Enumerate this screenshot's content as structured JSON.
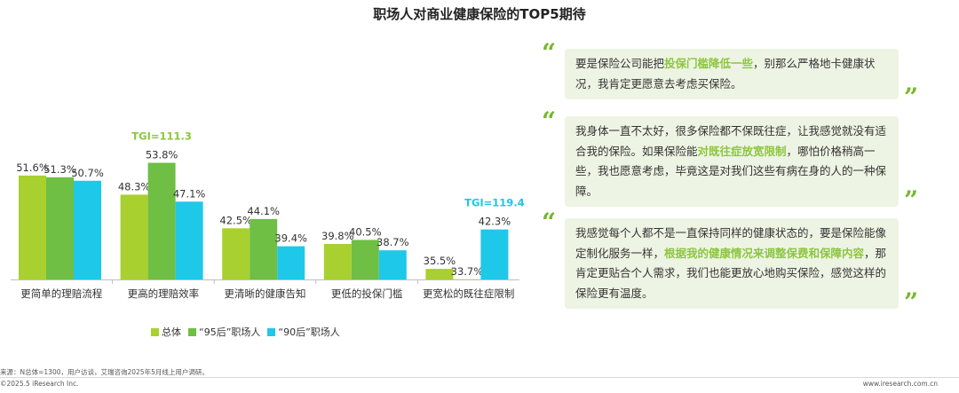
{
  "title": "职场人对商业健康保险的TOP5期待",
  "chart_data": {
    "type": "bar",
    "categories": [
      "更简单的理赔流程",
      "更高的理赔效率",
      "更清晰的健康告知",
      "更低的投保门槛",
      "更宽松的既往症限制"
    ],
    "series": [
      {
        "name": "总体",
        "color": "#a8d02e",
        "values": [
          51.6,
          48.3,
          42.5,
          39.8,
          35.5
        ],
        "labels": [
          "51.6%",
          "48.3%",
          "42.5%",
          "39.8%",
          "35.5%"
        ]
      },
      {
        "name": "“95后”职场人",
        "color": "#6ebf43",
        "values": [
          51.3,
          53.8,
          44.1,
          40.5,
          33.7
        ],
        "labels": [
          "51.3%",
          "53.8%",
          "44.1%",
          "40.5%",
          "33.7%"
        ]
      },
      {
        "name": "“90后”职场人",
        "color": "#1ec8e8",
        "values": [
          50.7,
          47.1,
          39.4,
          38.7,
          42.3
        ],
        "labels": [
          "50.7%",
          "47.1%",
          "39.4%",
          "38.7%",
          "42.3%"
        ]
      }
    ],
    "ylim": [
      0,
      60
    ],
    "annotations": [
      {
        "text": "TGI=111.3",
        "category": 1,
        "series": 1,
        "color": "#8cc63f"
      },
      {
        "text": "TGI=119.4",
        "category": 4,
        "series": 2,
        "color": "#1ec8e8"
      }
    ],
    "legend_position": "bottom"
  },
  "quotes": [
    {
      "pre": "要是保险公司能把",
      "highlight": "投保门槛降低一些",
      "post": "，别那么严格地卡健康状况，我肯定更愿意去考虑买保险。"
    },
    {
      "pre": "我身体一直不太好，很多保险都不保既往症，让我感觉就没有适合我的保险。如果保险能",
      "highlight": "对既往症放宽限制",
      "post": "，哪怕价格稍高一些，我也愿意考虑，毕竟这是对我们这些有病在身的人的一种保障。"
    },
    {
      "pre": "我感觉每个人都不是一直保持同样的健康状态的，要是保险能像定制化服务一样，",
      "highlight": "根据我的健康情况来调整保费和保障内容",
      "post": "，那肯定更贴合个人需求，我们也能更放心地购买保险，感觉这样的保险更有温度。"
    }
  ],
  "quote_open": "“",
  "quote_close": "”",
  "footer": {
    "source": "来源：N总体=1300，用户访谈，艾瑞咨询2025年5月线上用户调研。",
    "copyright": "©2025.5 iResearch Inc.",
    "site": "www.iresearch.com.cn"
  }
}
